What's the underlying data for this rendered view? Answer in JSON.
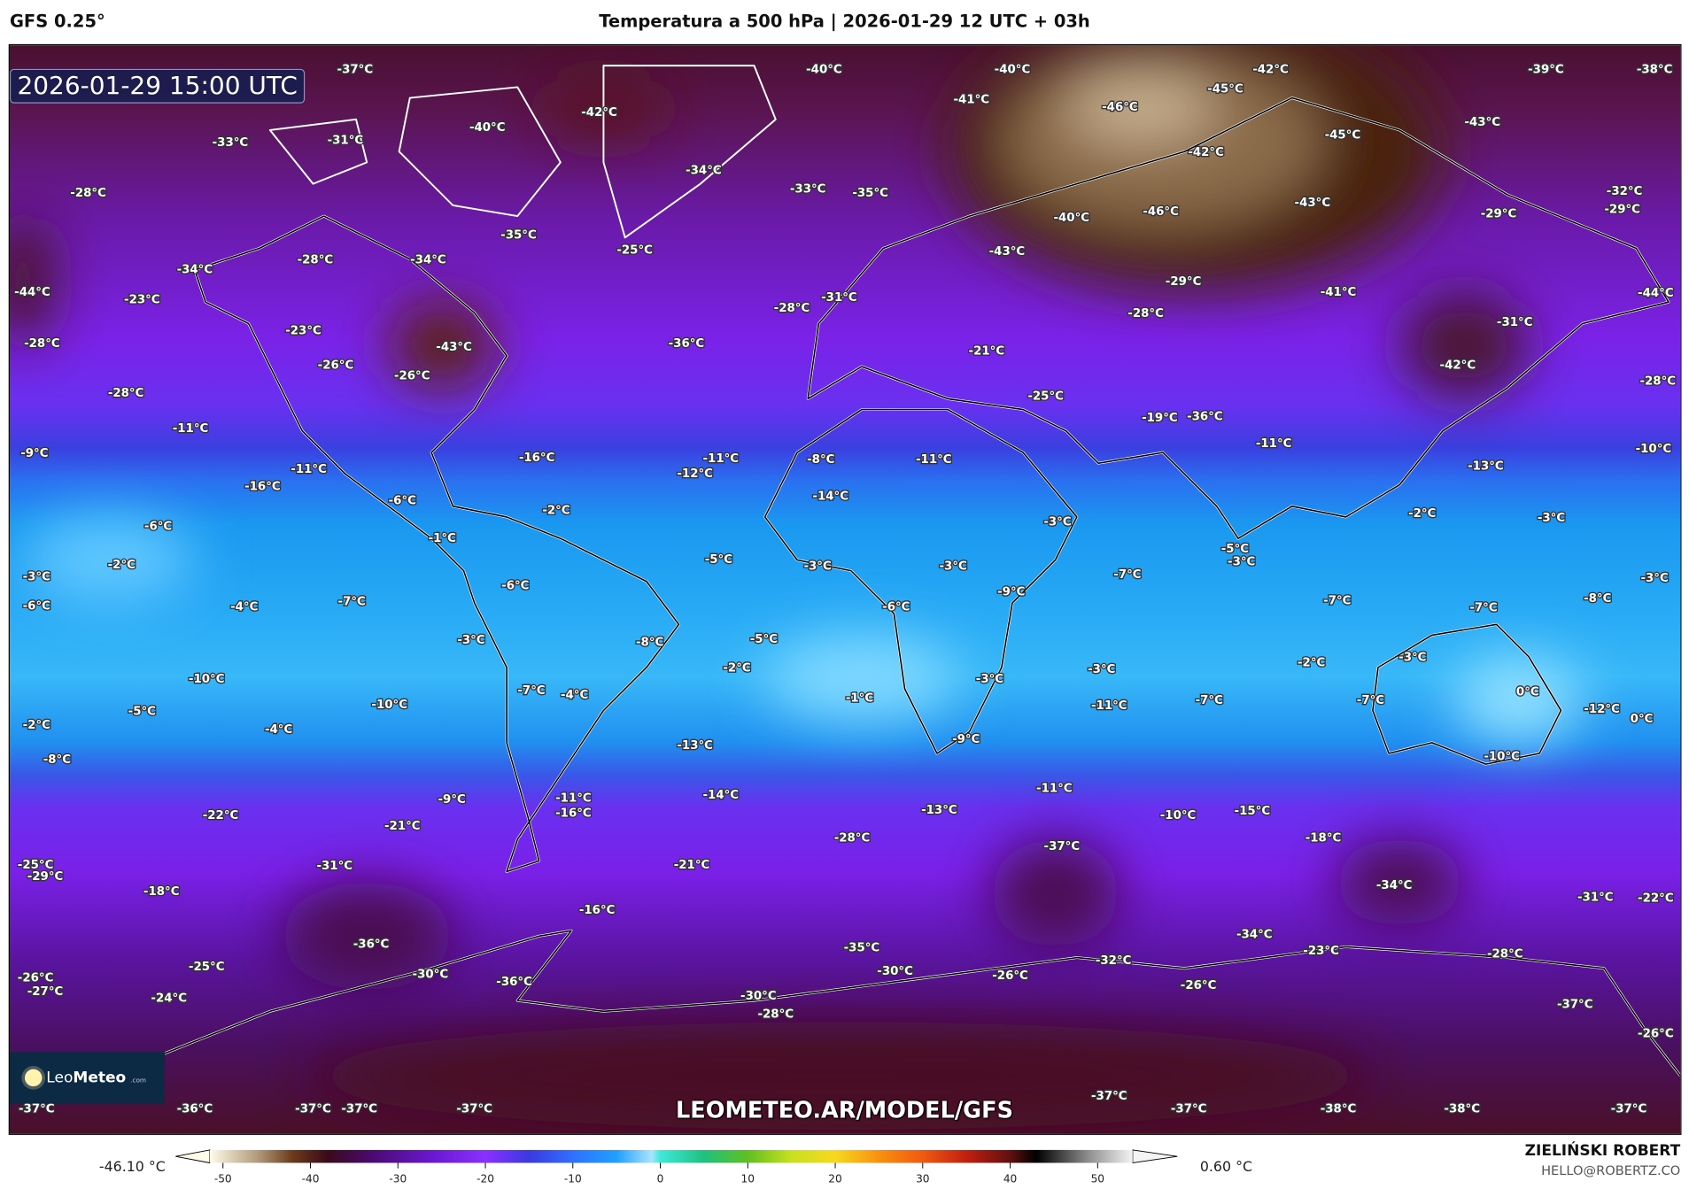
{
  "header": {
    "model": "GFS 0.25°",
    "title": "Temperatura a 500 hPa | 2026-01-29 12 UTC + 03h"
  },
  "map": {
    "valid_time": "2026-01-29 15:00 UTC",
    "watermark_url": "LEOMETEO.AR/MODEL/GFS",
    "logo_text": {
      "leo": "Leo",
      "meteo": "Meteo",
      "com": ".com"
    },
    "labels": [
      "-37°C",
      "-40°C",
      "-40°C",
      "-42°C",
      "-39°C",
      "-38°C",
      "-42°C",
      "-41°C",
      "-46°C",
      "-45°C",
      "-43°C",
      "-33°C",
      "-31°C",
      "-40°C",
      "-34°C",
      "-45°C",
      "-42°C",
      "-33°C",
      "-35°C",
      "-28°C",
      "-32°C",
      "-29°C",
      "-29°C",
      "-43°C",
      "-46°C",
      "-40°C",
      "-35°C",
      "-25°C",
      "-43°C",
      "-28°C",
      "-34°C",
      "-34°C",
      "-29°C",
      "-44°C",
      "-44°C",
      "-23°C",
      "-31°C",
      "-28°C",
      "-41°C",
      "-28°C",
      "-31°C",
      "-23°C",
      "-28°C",
      "-43°C",
      "-36°C",
      "-21°C",
      "-26°C",
      "-42°C",
      "-26°C",
      "-28°C",
      "-28°C",
      "-25°C",
      "-19°C",
      "-36°C",
      "-11°C",
      "-10°C",
      "-9°C",
      "-16°C",
      "-11°C",
      "-11°C",
      "-12°C",
      "-8°C",
      "-11°C",
      "-13°C",
      "-11°C",
      "-16°C",
      "-14°C",
      "-6°C",
      "-2°C",
      "-2°C",
      "-3°C",
      "-3°C",
      "-6°C",
      "-1°C",
      "-5°C",
      "-5°C",
      "-3°C",
      "-2°C",
      "-3°C",
      "-3°C",
      "-7°C",
      "-3°C",
      "-3°C",
      "-6°C",
      "-9°C",
      "-7°C",
      "-8°C",
      "-7°C",
      "-6°C",
      "-4°C",
      "-7°C",
      "-6°C",
      "-3°C",
      "-8°C",
      "-5°C",
      "-2°C",
      "-3°C",
      "-2°C",
      "-3°C",
      "-10°C",
      "-3°C",
      "-1°C",
      "0°C",
      "-7°C",
      "-4°C",
      "-10°C",
      "-11°C",
      "-7°C",
      "-7°C",
      "-12°C",
      "0°C",
      "-5°C",
      "-2°C",
      "-4°C",
      "-13°C",
      "-9°C",
      "-10°C",
      "-8°C",
      "-14°C",
      "-9°C",
      "-11°C",
      "-16°C",
      "-11°C",
      "-13°C",
      "-10°C",
      "-15°C",
      "-22°C",
      "-21°C",
      "-28°C",
      "-18°C",
      "-37°C",
      "-25°C",
      "-29°C",
      "-31°C",
      "-21°C",
      "-34°C",
      "-31°C",
      "-22°C",
      "-18°C",
      "-16°C",
      "-34°C",
      "-36°C",
      "-35°C",
      "-23°C",
      "-28°C",
      "-25°C",
      "-32°C",
      "-30°C",
      "-36°C",
      "-30°C",
      "-26°C",
      "-26°C",
      "-26°C",
      "-27°C",
      "-24°C",
      "-30°C",
      "-28°C",
      "-37°C",
      "-26°C",
      "-37°C",
      "-36°C",
      "-37°C",
      "-37°C",
      "-37°C",
      "-37°C",
      "-37°C",
      "-38°C",
      "-38°C",
      "-37°C"
    ]
  },
  "colorbar": {
    "min_label": "-46.10 °C",
    "max_label": "0.60 °C",
    "ticks": [
      "-50",
      "-40",
      "-30",
      "-20",
      "-10",
      "0",
      "10",
      "20",
      "30",
      "40",
      "50"
    ],
    "tick_values": [
      -50,
      -40,
      -30,
      -20,
      -10,
      0,
      10,
      20,
      30,
      40,
      50
    ],
    "range": [
      -51.5,
      54
    ],
    "stops": [
      [
        -51.5,
        "#fffbe8"
      ],
      [
        -46,
        "#b09a7a"
      ],
      [
        -42,
        "#6a3a1a"
      ],
      [
        -38,
        "#3a0a1a"
      ],
      [
        -33,
        "#4a0a70"
      ],
      [
        -26,
        "#6a18d0"
      ],
      [
        -20,
        "#8a30ff"
      ],
      [
        -15,
        "#3a3ae0"
      ],
      [
        -10,
        "#3070ff"
      ],
      [
        -5,
        "#20a0ff"
      ],
      [
        -1,
        "#a8e4ff"
      ],
      [
        0,
        "#40e8d8"
      ],
      [
        5,
        "#20c080"
      ],
      [
        10,
        "#60c020"
      ],
      [
        15,
        "#c8e020"
      ],
      [
        20,
        "#f8d820"
      ],
      [
        25,
        "#f89010"
      ],
      [
        30,
        "#f05a10"
      ],
      [
        35,
        "#c02010"
      ],
      [
        40,
        "#601010"
      ],
      [
        43,
        "#000000"
      ],
      [
        49,
        "#909090"
      ],
      [
        54,
        "#f4f4f4"
      ]
    ]
  },
  "credits": {
    "author": "ZIELIŃSKI ROBERT",
    "email": "HELLO@ROBERTZ.CO"
  }
}
